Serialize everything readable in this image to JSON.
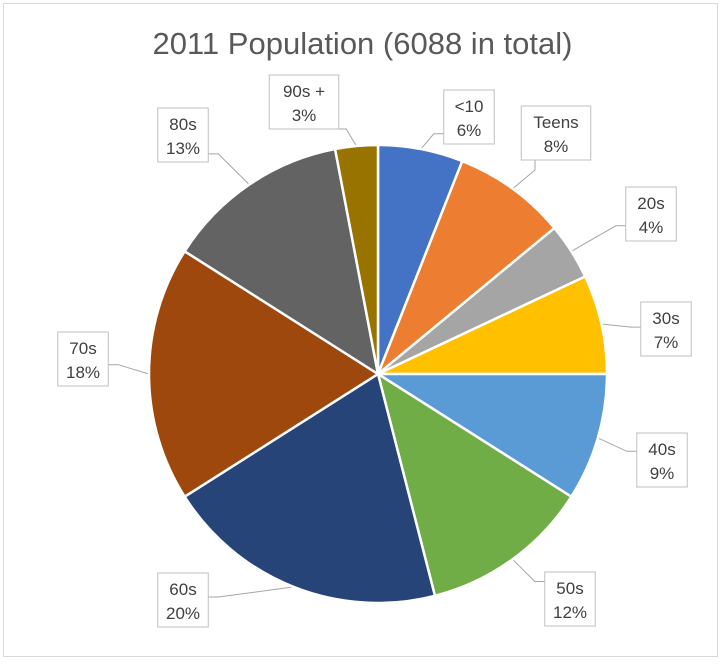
{
  "chart_data": {
    "type": "pie",
    "title": "2011 Population (6088 in total)",
    "categories": [
      "<10",
      "Teens",
      "20s",
      "30s",
      "40s",
      "50s",
      "60s",
      "70s",
      "80s",
      "90s +"
    ],
    "values": [
      6,
      8,
      4,
      7,
      9,
      12,
      20,
      18,
      13,
      3
    ],
    "value_labels": [
      "6%",
      "8%",
      "4%",
      "7%",
      "9%",
      "12%",
      "20%",
      "18%",
      "13%",
      "3%"
    ],
    "colors": [
      "#4472c4",
      "#ed7d31",
      "#a5a5a5",
      "#ffc000",
      "#5b9bd5",
      "#70ad47",
      "#264478",
      "#9e480e",
      "#636363",
      "#997300"
    ],
    "legend": "none",
    "data_labels": "callout"
  }
}
